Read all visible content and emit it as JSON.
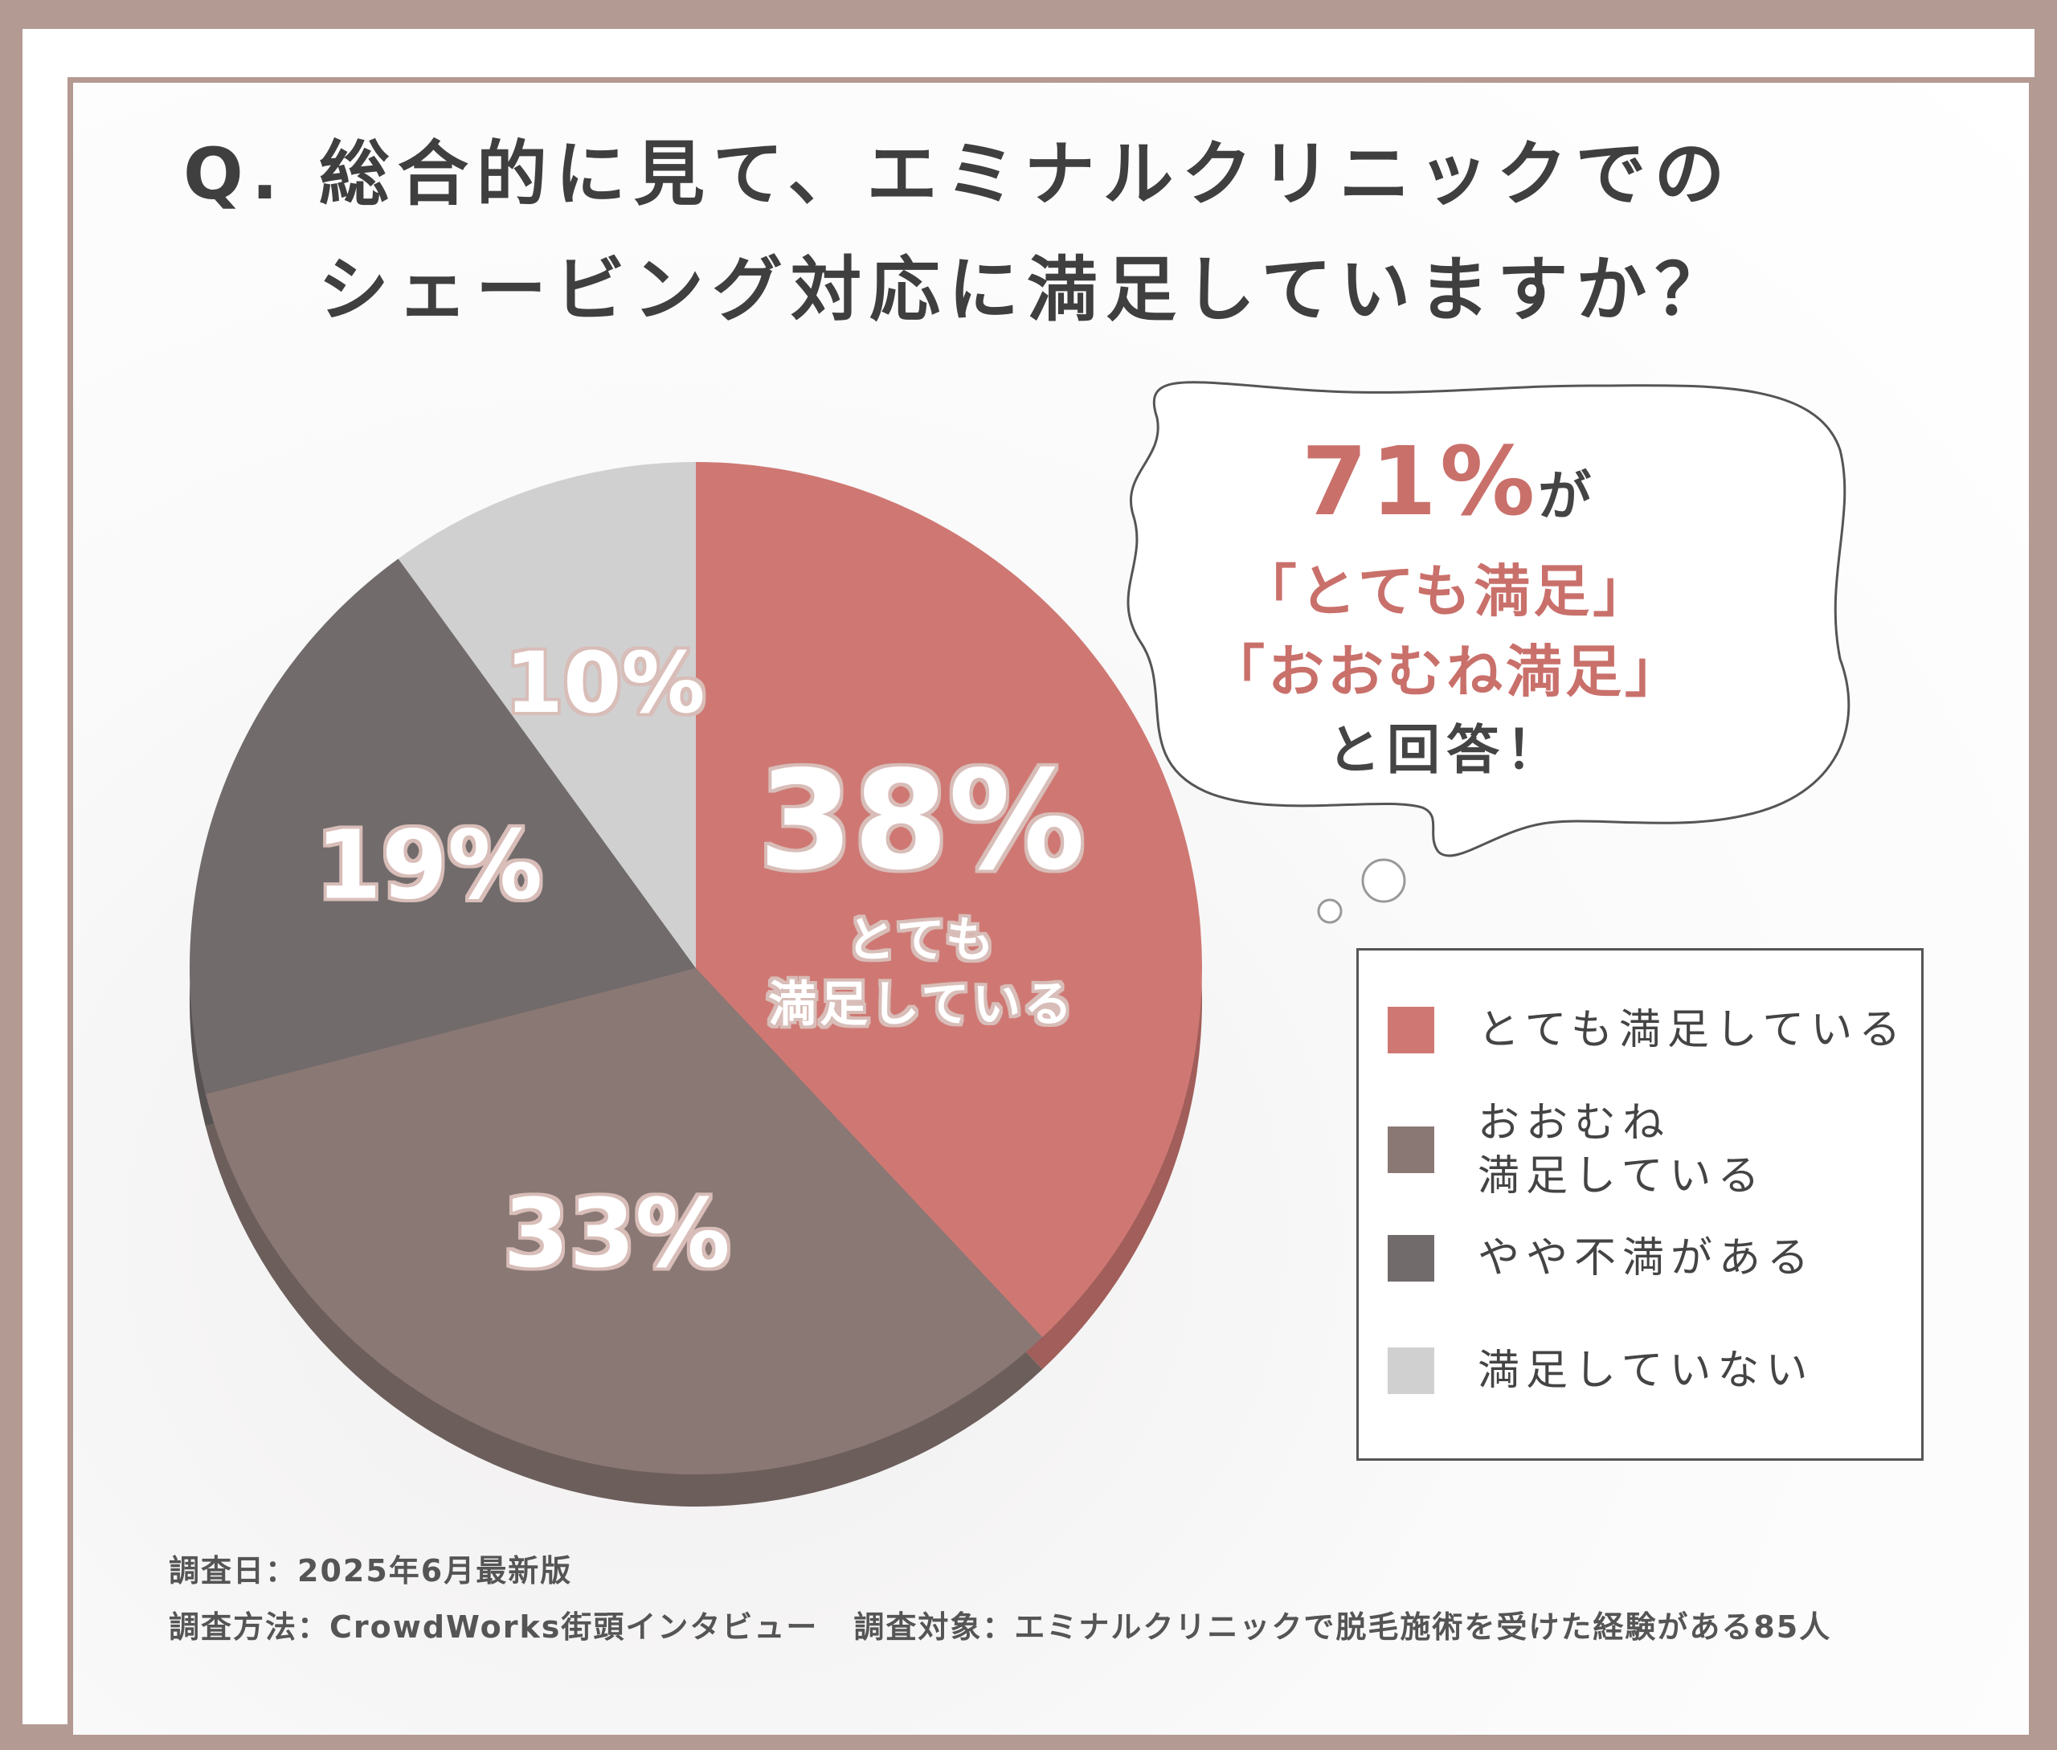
{
  "title": {
    "line1": "Q. 総合的に見て、エミナルクリニックでの",
    "line2": "シェービング対応に満足していますか？"
  },
  "callout": {
    "percent": "71%",
    "suffix": "が",
    "line1": "「とても満足」",
    "line2": "「おおむね満足」",
    "line3": "と回答！"
  },
  "chart_data": {
    "type": "pie",
    "slices": [
      {
        "label": "とても満足している",
        "value": 38,
        "display": "38%",
        "sub_label": [
          "とても",
          "満足している"
        ],
        "color": "#cf7873"
      },
      {
        "label": "おおむね満足している",
        "value": 33,
        "display": "33%",
        "color": "#8a7875"
      },
      {
        "label": "やや不満がある",
        "value": 19,
        "display": "19%",
        "color": "#716b6b"
      },
      {
        "label": "満足していない",
        "value": 10,
        "display": "10%",
        "color": "#d0d0d0"
      }
    ],
    "legend": [
      "とても満足している",
      "おおむね\n満足している",
      "やや不満がある",
      "満足していない"
    ],
    "legend_placement": "bottom-right"
  },
  "footer": {
    "date": "調査日：2025年6月最新版",
    "method": "調査方法：CrowdWorks街頭インタビュー",
    "target": "調査対象：エミナルクリニックで脱毛施術を受けた経験がある85人"
  },
  "colors": {
    "border": "#b39a93",
    "accent": "#c9706b",
    "text": "#3f3f3f"
  }
}
